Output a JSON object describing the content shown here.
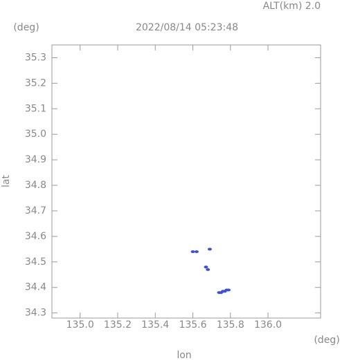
{
  "chart_data": {
    "type": "scatter",
    "title": "2022/08/14 05:23:48",
    "subtitle": "ALT(km)  2.0",
    "x_unit": "(deg)",
    "y_unit": "(deg)",
    "xlabel": "lon",
    "ylabel": "lat",
    "xlim": [
      134.85,
      136.28
    ],
    "ylim": [
      34.28,
      35.35
    ],
    "xticks": [
      {
        "value": 135.0,
        "label": "135.0"
      },
      135.2,
      135.4,
      135.6,
      135.8,
      {
        "value": 136.0,
        "label": "136.0"
      }
    ],
    "yticks": [
      34.3,
      34.4,
      34.5,
      34.6,
      34.7,
      34.8,
      34.9,
      {
        "value": 35.0,
        "label": "35.0"
      },
      35.1,
      35.2,
      35.3
    ],
    "series": [
      {
        "color": "#3c50e0",
        "x": [
          135.6,
          135.62,
          135.69,
          135.67,
          135.68,
          135.74,
          135.75,
          135.76,
          135.77,
          135.78,
          135.79
        ],
        "y": [
          34.54,
          34.54,
          34.55,
          34.48,
          34.47,
          34.38,
          34.38,
          34.385,
          34.385,
          34.39,
          34.39
        ]
      }
    ]
  }
}
